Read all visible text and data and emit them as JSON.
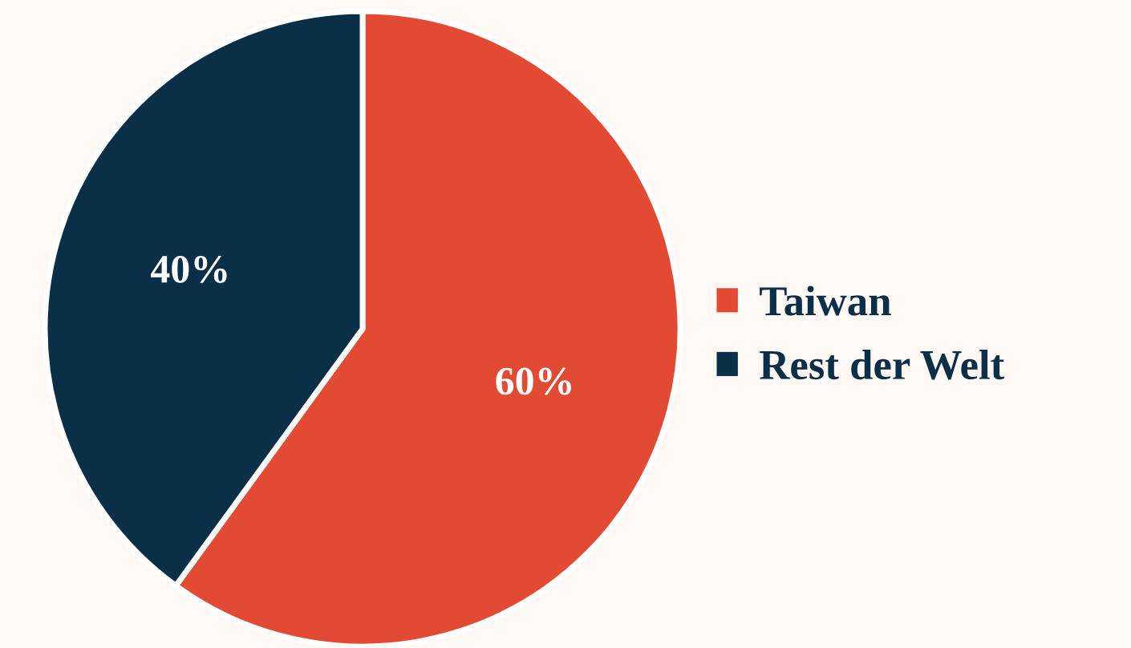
{
  "chart_data": {
    "type": "pie",
    "categories": [
      "Taiwan",
      "Rest der Welt"
    ],
    "values": [
      60,
      40
    ],
    "colors": [
      "#e34a33",
      "#0c2f48"
    ],
    "value_labels": [
      "60%",
      "40%"
    ],
    "legend": "right"
  }
}
